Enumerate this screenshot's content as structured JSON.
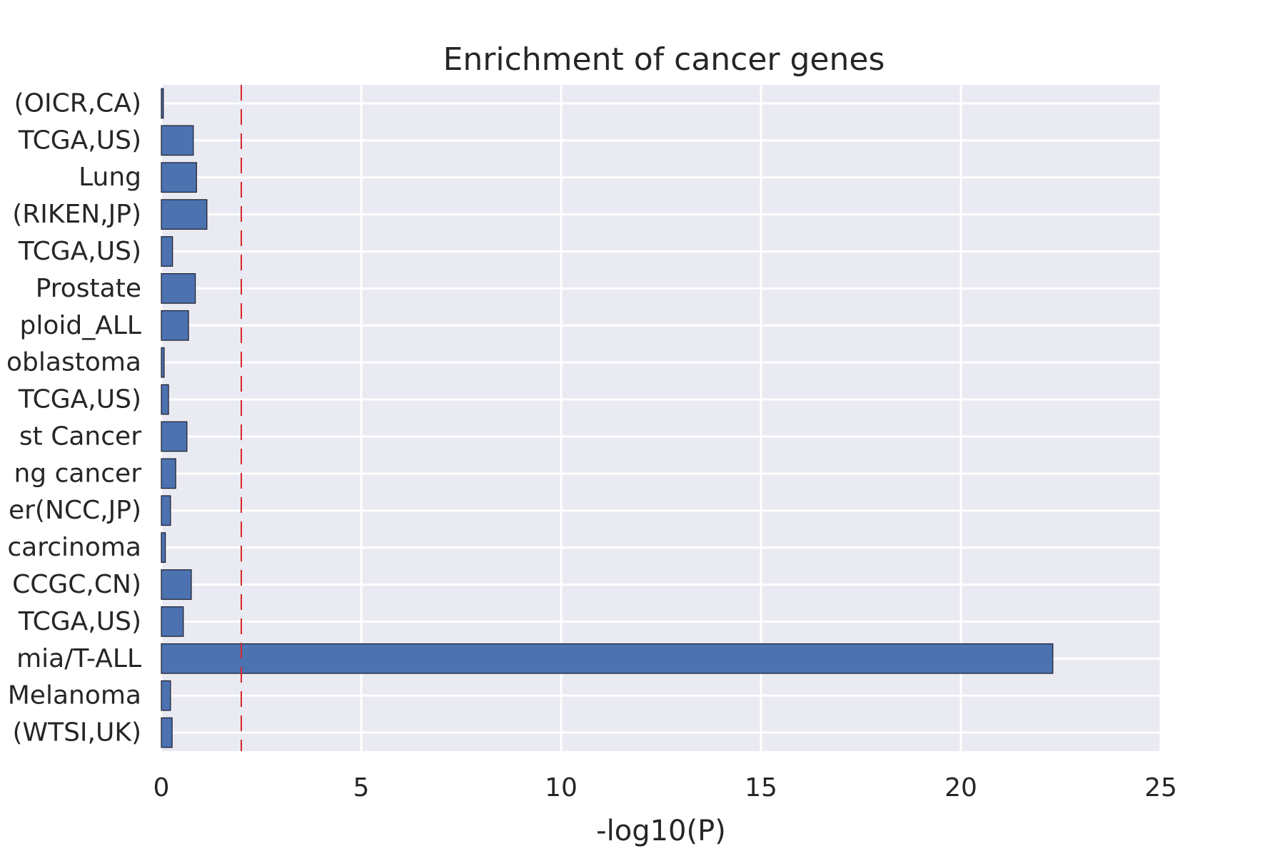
{
  "chart_data": {
    "type": "bar",
    "orientation": "horizontal",
    "title": "Enrichment of cancer genes",
    "xlabel": "-log10(P)",
    "ylabel": "",
    "xlim": [
      0,
      25
    ],
    "xticks": [
      "0",
      "5",
      "10",
      "15",
      "20",
      "25"
    ],
    "grid": true,
    "categories": [
      "(OICR,CA)",
      "TCGA,US)",
      "Lung",
      "(RIKEN,JP)",
      "TCGA,US)",
      "Prostate",
      "ploid_ALL",
      "oblastoma",
      "TCGA,US)",
      "st Cancer",
      "ng cancer",
      "er(NCC,JP)",
      "carcinoma",
      "CCGC,CN)",
      "TCGA,US)",
      "mia/T-ALL",
      "Melanoma",
      "(WTSI,UK)"
    ],
    "values": [
      0.05,
      0.8,
      0.88,
      1.14,
      0.28,
      0.85,
      0.68,
      0.07,
      0.18,
      0.64,
      0.36,
      0.23,
      0.1,
      0.75,
      0.55,
      22.3,
      0.23,
      0.27
    ],
    "threshold": 2,
    "colors": {
      "bar": "#4c72b0",
      "bar_edge": "#1c1c2a",
      "background": "#eaeaf2",
      "grid": "#ffffff",
      "threshold": "#d62728"
    }
  }
}
